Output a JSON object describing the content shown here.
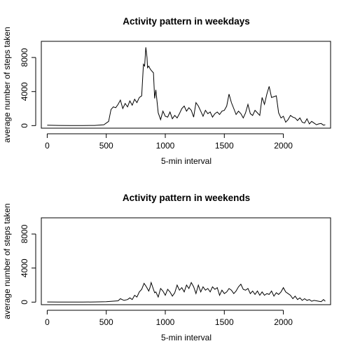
{
  "chart_data": [
    {
      "type": "line",
      "title": "Activity pattern in weekdays",
      "xlabel": "5-min interval",
      "ylabel": "average number of steps taken",
      "xlim": [
        -50,
        2400
      ],
      "ylim": [
        -300,
        9900
      ],
      "xticks": [
        0,
        500,
        1000,
        1500,
        2000
      ],
      "yticks": [
        0,
        4000,
        8000
      ],
      "grid": false,
      "series": [
        {
          "x": [
            0,
            100,
            200,
            300,
            400,
            480,
            520,
            540,
            560,
            580,
            600,
            620,
            640,
            660,
            680,
            700,
            720,
            740,
            760,
            780,
            800,
            815,
            825,
            835,
            845,
            850,
            860,
            870,
            880,
            900,
            910,
            920,
            940,
            960,
            980,
            1000,
            1020,
            1040,
            1060,
            1080,
            1100,
            1120,
            1140,
            1160,
            1180,
            1200,
            1220,
            1240,
            1260,
            1280,
            1300,
            1320,
            1340,
            1360,
            1380,
            1400,
            1420,
            1440,
            1460,
            1480,
            1500,
            1520,
            1540,
            1560,
            1580,
            1600,
            1620,
            1640,
            1660,
            1680,
            1700,
            1720,
            1740,
            1760,
            1780,
            1800,
            1820,
            1840,
            1860,
            1880,
            1900,
            1920,
            1940,
            1960,
            1980,
            2000,
            2020,
            2040,
            2060,
            2080,
            2100,
            2120,
            2140,
            2160,
            2180,
            2200,
            2220,
            2240,
            2260,
            2280,
            2300,
            2320,
            2340,
            2355
          ],
          "y": [
            50,
            20,
            10,
            15,
            20,
            100,
            500,
            1900,
            2200,
            2100,
            2500,
            3000,
            2000,
            2600,
            2200,
            2900,
            2400,
            3100,
            2700,
            3300,
            3500,
            7200,
            7000,
            9200,
            8000,
            6800,
            7000,
            6700,
            6500,
            6200,
            3200,
            4200,
            1500,
            700,
            1700,
            1100,
            1000,
            1600,
            800,
            1200,
            900,
            1400,
            2000,
            2300,
            1700,
            2100,
            1800,
            1000,
            2700,
            2300,
            1700,
            1100,
            1800,
            1400,
            1600,
            1000,
            1400,
            1600,
            1300,
            1700,
            1800,
            2300,
            3700,
            2700,
            2000,
            1300,
            1700,
            1400,
            900,
            1500,
            2500,
            1400,
            1200,
            1800,
            1500,
            1200,
            3300,
            2500,
            3700,
            4600,
            3300,
            3400,
            3500,
            1500,
            900,
            1100,
            400,
            700,
            1200,
            1000,
            900,
            600,
            900,
            400,
            300,
            800,
            200,
            500,
            300,
            100,
            200,
            250,
            50,
            100
          ]
        }
      ]
    },
    {
      "type": "line",
      "title": "Activity pattern in weekends",
      "xlabel": "5-min interval",
      "ylabel": "average number of steps taken",
      "xlim": [
        -50,
        2400
      ],
      "ylim": [
        -300,
        9900
      ],
      "xticks": [
        0,
        500,
        1000,
        1500,
        2000
      ],
      "yticks": [
        0,
        4000,
        8000
      ],
      "grid": false,
      "series": [
        {
          "x": [
            0,
            100,
            200,
            300,
            400,
            500,
            550,
            600,
            620,
            650,
            680,
            700,
            720,
            740,
            760,
            780,
            800,
            820,
            840,
            860,
            870,
            880,
            900,
            910,
            920,
            940,
            960,
            980,
            1000,
            1020,
            1040,
            1060,
            1080,
            1100,
            1120,
            1140,
            1160,
            1180,
            1200,
            1220,
            1240,
            1260,
            1280,
            1300,
            1320,
            1340,
            1360,
            1380,
            1400,
            1420,
            1440,
            1460,
            1480,
            1500,
            1520,
            1540,
            1560,
            1580,
            1600,
            1620,
            1640,
            1660,
            1680,
            1700,
            1720,
            1740,
            1760,
            1780,
            1800,
            1820,
            1840,
            1860,
            1880,
            1900,
            1920,
            1940,
            1960,
            1980,
            2000,
            2020,
            2040,
            2060,
            2080,
            2100,
            2120,
            2140,
            2160,
            2180,
            2200,
            2220,
            2240,
            2260,
            2280,
            2300,
            2320,
            2340,
            2355
          ],
          "y": [
            20,
            10,
            5,
            5,
            20,
            50,
            100,
            150,
            400,
            200,
            300,
            500,
            300,
            800,
            600,
            1200,
            1500,
            2200,
            1800,
            1300,
            1700,
            2300,
            1500,
            1100,
            1200,
            600,
            1600,
            1300,
            800,
            1500,
            1200,
            700,
            1100,
            2000,
            1400,
            1700,
            1200,
            2000,
            1600,
            2300,
            1800,
            1000,
            2000,
            1200,
            1800,
            1400,
            1600,
            1200,
            1800,
            1500,
            1700,
            800,
            1400,
            1000,
            1200,
            1600,
            1400,
            1000,
            1300,
            1800,
            2100,
            1500,
            1400,
            1600,
            1000,
            1300,
            900,
            1300,
            800,
            1200,
            800,
            1000,
            900,
            1300,
            700,
            1100,
            900,
            1200,
            1700,
            1200,
            1000,
            800,
            400,
            700,
            300,
            500,
            200,
            400,
            200,
            300,
            100,
            200,
            150,
            100,
            50,
            300,
            100
          ]
        }
      ]
    }
  ]
}
